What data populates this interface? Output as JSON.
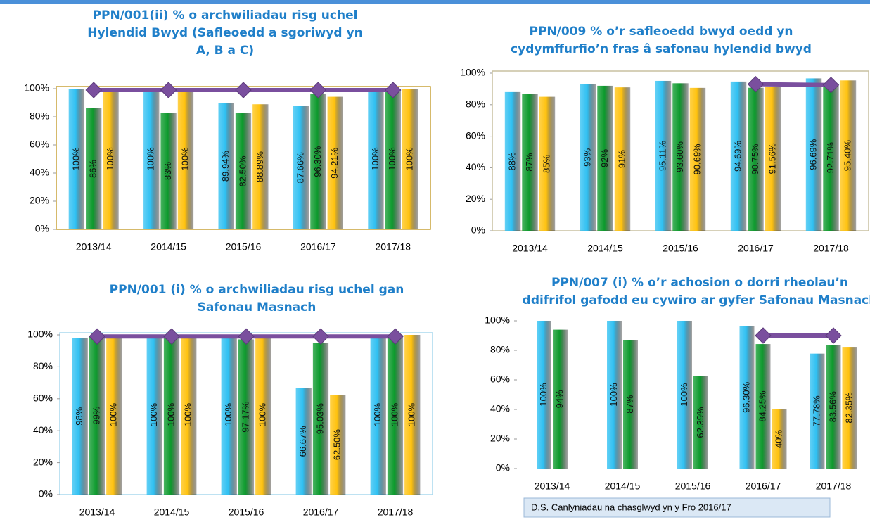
{
  "chart_data": [
    {
      "type": "bar",
      "title": [
        "PPN/001(ii) % o archwiliadau risg uchel",
        "Hylendid Bwyd (Safleoedd a sgoriwyd yn",
        "A, B a C)"
      ],
      "categories": [
        "2013/14",
        "2014/15",
        "2015/16",
        "2016/17",
        "2017/18"
      ],
      "ylim": [
        0,
        100
      ],
      "yticks": [
        {
          "value": 0,
          "label": "0%"
        },
        {
          "value": 20,
          "label": "20%"
        },
        {
          "value": 40,
          "label": "40%"
        },
        {
          "value": 60,
          "label": "60%"
        },
        {
          "value": 80,
          "label": "80%"
        },
        {
          "value": 100,
          "label": "100%"
        }
      ],
      "series": [
        {
          "color": "#2fc0f2",
          "values": [
            100,
            100,
            89.94,
            87.66,
            100
          ],
          "value_labels": [
            "100%",
            "100%",
            "89.94%",
            "87.66%",
            "100%"
          ]
        },
        {
          "color": "#0c9a2c",
          "values": [
            86,
            83,
            82.5,
            96.3,
            100
          ],
          "value_labels": [
            "86%",
            "83%",
            "82.50%",
            "96.30%",
            "100%"
          ]
        },
        {
          "color": "#ffc20e",
          "values": [
            100,
            100,
            88.89,
            94.21,
            100
          ],
          "value_labels": [
            "100%",
            "100%",
            "88.89%",
            "94.21%",
            "100%"
          ]
        },
        {
          "type": "line",
          "color": "#7a4f9e",
          "values": [
            99,
            99,
            99,
            99,
            99
          ]
        }
      ]
    },
    {
      "type": "bar",
      "title": [
        "PPN/009 % o’r safleoedd bwyd oedd yn",
        "cydymffurfio’n fras â safonau hylendid bwyd"
      ],
      "categories": [
        "2013/14",
        "2014/15",
        "2015/16",
        "2016/17",
        "2017/18"
      ],
      "ylim": [
        0,
        100
      ],
      "yticks": [
        {
          "value": 0,
          "label": "0%"
        },
        {
          "value": 20,
          "label": "20%"
        },
        {
          "value": 40,
          "label": "40%"
        },
        {
          "value": 60,
          "label": "60%"
        },
        {
          "value": 80,
          "label": "80%"
        },
        {
          "value": 100,
          "label": "100%"
        }
      ],
      "series": [
        {
          "color": "#2fc0f2",
          "values": [
            88,
            93,
            95.11,
            94.69,
            96.69
          ],
          "value_labels": [
            "88%",
            "93%",
            "95.11%",
            "94.69%",
            "96.69%"
          ]
        },
        {
          "color": "#0c9a2c",
          "values": [
            87,
            92,
            93.6,
            90.75,
            92.71
          ],
          "value_labels": [
            "87%",
            "92%",
            "93.60%",
            "90.75%",
            "92.71%"
          ]
        },
        {
          "color": "#ffc20e",
          "values": [
            85,
            91,
            90.69,
            91.56,
            95.4
          ],
          "value_labels": [
            "85%",
            "91%",
            "90.69%",
            "91.56%",
            "95.40%"
          ]
        },
        {
          "type": "line",
          "color": "#7a4f9e",
          "values": [
            null,
            null,
            null,
            93,
            92.5
          ]
        }
      ]
    },
    {
      "type": "bar",
      "title": [
        "PPN/001 (i) % o archwiliadau risg uchel gan",
        "Safonau Masnach"
      ],
      "categories": [
        "2013/14",
        "2014/15",
        "2015/16",
        "2016/17",
        "2017/18"
      ],
      "ylim": [
        0,
        100
      ],
      "yticks": [
        {
          "value": 0,
          "label": "0%"
        },
        {
          "value": 20,
          "label": "20%"
        },
        {
          "value": 40,
          "label": "40%"
        },
        {
          "value": 60,
          "label": "60%"
        },
        {
          "value": 80,
          "label": "80%"
        },
        {
          "value": 100,
          "label": "100%"
        }
      ],
      "series": [
        {
          "color": "#2fc0f2",
          "values": [
            98,
            100,
            100,
            66.67,
            100
          ],
          "value_labels": [
            "98%",
            "100%",
            "100%",
            "66.67%",
            "100%"
          ]
        },
        {
          "color": "#0c9a2c",
          "values": [
            99,
            100,
            97.17,
            95.03,
            100
          ],
          "value_labels": [
            "99%",
            "100%",
            "97.17%",
            "95.03%",
            "100%"
          ]
        },
        {
          "color": "#ffc20e",
          "values": [
            100,
            100,
            100,
            62.5,
            100
          ],
          "value_labels": [
            "100%",
            "100%",
            "100%",
            "62.50%",
            "100%"
          ]
        },
        {
          "type": "line",
          "color": "#7a4f9e",
          "values": [
            99,
            99,
            99,
            99,
            99
          ]
        }
      ]
    },
    {
      "type": "bar",
      "title": [
        "PPN/007 (i) % o’r achosion o dorri rheolau’n",
        "ddifrifol gafodd eu cywiro ar gyfer Safonau Masnach"
      ],
      "categories": [
        "2013/14",
        "2014/15",
        "2015/16",
        "2016/17",
        "2017/18"
      ],
      "ylim": [
        0,
        100
      ],
      "yticks": [
        {
          "value": 0,
          "label": "0%"
        },
        {
          "value": 20,
          "label": "20%"
        },
        {
          "value": 40,
          "label": "40%"
        },
        {
          "value": 60,
          "label": "60%"
        },
        {
          "value": 80,
          "label": "80%"
        },
        {
          "value": 100,
          "label": "100%"
        }
      ],
      "series": [
        {
          "color": "#2fc0f2",
          "values": [
            100,
            100,
            100,
            96.3,
            77.78
          ],
          "value_labels": [
            "100%",
            "100%",
            "100%",
            "96.30%",
            "77.78%"
          ]
        },
        {
          "color": "#0c9a2c",
          "values": [
            94,
            87,
            62.39,
            84.25,
            83.56
          ],
          "value_labels": [
            "94%",
            "87%",
            "62.39%",
            "84.25%",
            "83.56%"
          ]
        },
        {
          "color": "#ffc20e",
          "values": [
            null,
            null,
            null,
            40,
            82.35
          ],
          "value_labels": [
            null,
            null,
            null,
            "40%",
            "82.35%"
          ]
        },
        {
          "type": "line",
          "color": "#7a4f9e",
          "values": [
            null,
            null,
            null,
            90,
            90
          ]
        }
      ],
      "annotation": "D.S.  Canlyniadau na chasglwyd yn y Fro 2016/17"
    }
  ]
}
